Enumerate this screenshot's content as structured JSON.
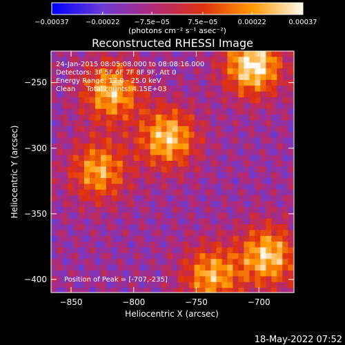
{
  "colorbar": {
    "tick_values": [
      -0.00037,
      -0.00022,
      -7.5e-05,
      7.5e-05,
      0.00022,
      0.00037
    ],
    "tick_labels": [
      "−0.00037",
      "−0.00022",
      "−7.5e−05",
      "7.5e−05",
      "0.00022",
      "0.00037"
    ],
    "unit_label": "(photons cm⁻² s⁻¹ asec⁻²)",
    "range": [
      -0.00037,
      0.00037
    ],
    "colors": [
      "#0000ff",
      "#6a3bd6",
      "#b02a7a",
      "#e03010",
      "#ff9900",
      "#fff9f0"
    ]
  },
  "chart_data": {
    "type": "heatmap",
    "title": "Reconstructed RHESSI Image",
    "xlabel": "Heliocentric X (arcsec)",
    "ylabel": "Heliocentric Y (arcsec)",
    "xlim": [
      -866,
      -672
    ],
    "ylim": [
      -410,
      -226
    ],
    "x_ticks": [
      -850,
      -800,
      -750,
      -700
    ],
    "x_tick_labels": [
      "−850",
      "−800",
      "−750",
      "−700"
    ],
    "y_ticks": [
      -250,
      -300,
      -350,
      -400
    ],
    "y_tick_labels": [
      "−250",
      "−300",
      "−350",
      "−400"
    ],
    "colormap": "blue-purple-red-yellow-white",
    "peak": [
      -707,
      -235
    ],
    "bright_regions": [
      {
        "x": -707,
        "y": -235,
        "level": 0.00037
      },
      {
        "x": -775,
        "y": -290,
        "level": 0.0003
      },
      {
        "x": -820,
        "y": -255,
        "level": 0.00028
      },
      {
        "x": -830,
        "y": -315,
        "level": 0.00024
      },
      {
        "x": -695,
        "y": -380,
        "level": 0.0003
      },
      {
        "x": -740,
        "y": -395,
        "level": 0.00025
      }
    ],
    "annotations": [
      "24-Jan-2015 08:05:08.000 to 08:08:16.000",
      "Detectors: 3F 5F 6F 7F 8F 9F, Att 0",
      "Energy Range: 12.0 - 25.0 keV",
      "Clean     Total counts: 4.15E+03",
      "Position of Peak = [-707,-235]"
    ]
  },
  "timestamp": "18-May-2022 07:52"
}
